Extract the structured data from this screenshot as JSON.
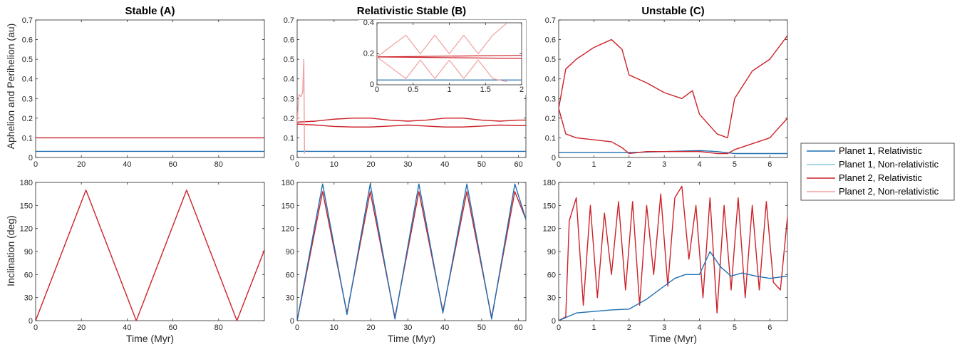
{
  "colors": {
    "planet1_rel": "#1f6fb2",
    "planet1_nonrel": "#8ec8df",
    "planet2_rel": "#cc2229",
    "planet2_nonrel": "#f2a0a0"
  },
  "legend": {
    "entries": [
      {
        "label": "Planet 1, Relativistic",
        "color": "#1f6fb2"
      },
      {
        "label": "Planet 1, Non-relativistic",
        "color": "#8ec8df"
      },
      {
        "label": "Planet 2, Relativistic",
        "color": "#cc2229"
      },
      {
        "label": "Planet 2, Non-relativistic",
        "color": "#f2a0a0"
      }
    ]
  },
  "chart_data": [
    {
      "type": "line",
      "id": "A-top",
      "title": "Stable (A)",
      "xlabel": "",
      "ylabel": "Aphelion and Perihelion (au)",
      "xlim": [
        0,
        100
      ],
      "ylim": [
        0,
        0.7
      ],
      "xticks": [
        "0",
        "20",
        "40",
        "60",
        "80"
      ],
      "yticks": [
        "0",
        "0.1",
        "0.2",
        "0.3",
        "0.4",
        "0.5",
        "0.6",
        "0.7"
      ],
      "series": [
        {
          "name": "Planet 1, Relativistic",
          "x": [
            0,
            100
          ],
          "y": [
            0.031,
            0.031
          ]
        },
        {
          "name": "Planet 2, Relativistic",
          "x": [
            0,
            100
          ],
          "y": [
            0.1,
            0.1
          ]
        }
      ]
    },
    {
      "type": "line",
      "id": "B-top",
      "title": "Relativistic Stable (B)",
      "xlabel": "",
      "ylabel": "",
      "xlim": [
        0,
        62
      ],
      "ylim": [
        0,
        0.7
      ],
      "xticks": [
        "0",
        "10",
        "20",
        "30",
        "40",
        "50",
        "60"
      ],
      "yticks": [
        "0",
        "0.1",
        "0.2",
        "0.3",
        "0.4",
        "0.5",
        "0.6",
        "0.7"
      ],
      "series": [
        {
          "name": "Planet 1, Relativistic",
          "x": [
            0,
            62
          ],
          "y": [
            0.031,
            0.031
          ]
        },
        {
          "name": "Planet 2, Relativistic (aphelion)",
          "x": [
            0,
            5,
            10,
            15,
            20,
            25,
            30,
            35,
            40,
            45,
            50,
            55,
            60,
            62
          ],
          "y": [
            0.18,
            0.185,
            0.195,
            0.2,
            0.2,
            0.19,
            0.185,
            0.19,
            0.2,
            0.2,
            0.19,
            0.185,
            0.19,
            0.19
          ]
        },
        {
          "name": "Planet 2, Relativistic (perihelion)",
          "x": [
            0,
            5,
            10,
            15,
            20,
            25,
            30,
            35,
            40,
            45,
            50,
            55,
            60,
            62
          ],
          "y": [
            0.17,
            0.165,
            0.158,
            0.155,
            0.155,
            0.16,
            0.165,
            0.16,
            0.155,
            0.155,
            0.16,
            0.165,
            0.162,
            0.162
          ]
        },
        {
          "name": "Planet 2, Non-relativistic",
          "x": [
            0,
            0.5,
            1.0,
            1.5,
            1.8,
            2.0
          ],
          "y": [
            0.18,
            0.32,
            0.31,
            0.33,
            0.5,
            0.02
          ]
        }
      ],
      "inset": {
        "xlim": [
          0,
          2
        ],
        "ylim": [
          0,
          0.4
        ],
        "xticks": [
          "0",
          "0.5",
          "1",
          "1.5",
          "2"
        ],
        "yticks": [
          "0",
          "0.2",
          "0.4"
        ],
        "series": [
          {
            "name": "Planet 1, Relativistic",
            "x": [
              0,
              2
            ],
            "y": [
              0.031,
              0.031
            ]
          },
          {
            "name": "Planet 2, Relativistic (aphelion)",
            "x": [
              0,
              2
            ],
            "y": [
              0.18,
              0.19
            ]
          },
          {
            "name": "Planet 2, Relativistic (perihelion)",
            "x": [
              0,
              2
            ],
            "y": [
              0.18,
              0.17
            ]
          },
          {
            "name": "Planet 2, Non-relativistic (aphelion)",
            "x": [
              0,
              0.4,
              0.6,
              0.8,
              1.0,
              1.2,
              1.4,
              1.6,
              1.8
            ],
            "y": [
              0.18,
              0.32,
              0.2,
              0.32,
              0.2,
              0.32,
              0.2,
              0.32,
              0.4
            ]
          },
          {
            "name": "Planet 2, Non-relativistic (perihelion)",
            "x": [
              0,
              0.4,
              0.6,
              0.8,
              1.0,
              1.2,
              1.4,
              1.6,
              1.8
            ],
            "y": [
              0.18,
              0.04,
              0.16,
              0.04,
              0.16,
              0.04,
              0.16,
              0.04,
              0.02
            ]
          }
        ]
      }
    },
    {
      "type": "line",
      "id": "C-top",
      "title": "Unstable (C)",
      "xlabel": "",
      "ylabel": "",
      "xlim": [
        0,
        6.5
      ],
      "ylim": [
        0,
        0.7
      ],
      "xticks": [
        "0",
        "1",
        "2",
        "3",
        "4",
        "5",
        "6"
      ],
      "yticks": [
        "0",
        "0.1",
        "0.2",
        "0.3",
        "0.4",
        "0.5",
        "0.6",
        "0.7"
      ],
      "series": [
        {
          "name": "Planet 1, Relativistic",
          "x": [
            0,
            2,
            3,
            4,
            4.5,
            5,
            6.5
          ],
          "y": [
            0.025,
            0.025,
            0.03,
            0.035,
            0.03,
            0.02,
            0.02
          ]
        },
        {
          "name": "Planet 2, Relativistic (aphelion)",
          "x": [
            0,
            0.2,
            0.5,
            1.0,
            1.5,
            1.8,
            2.0,
            2.5,
            3.0,
            3.5,
            3.8,
            4.0,
            4.5,
            4.8,
            5.0,
            5.5,
            6.0,
            6.5
          ],
          "y": [
            0.25,
            0.45,
            0.5,
            0.56,
            0.6,
            0.55,
            0.42,
            0.38,
            0.33,
            0.3,
            0.34,
            0.22,
            0.12,
            0.1,
            0.3,
            0.44,
            0.5,
            0.62
          ]
        },
        {
          "name": "Planet 2, Relativistic (perihelion)",
          "x": [
            0,
            0.2,
            0.5,
            1.0,
            1.5,
            1.8,
            2.0,
            2.5,
            3.0,
            3.5,
            4.0,
            4.5,
            4.8,
            5.0,
            5.5,
            6.0,
            6.5
          ],
          "y": [
            0.25,
            0.12,
            0.1,
            0.09,
            0.08,
            0.05,
            0.02,
            0.03,
            0.03,
            0.03,
            0.03,
            0.02,
            0.02,
            0.04,
            0.07,
            0.1,
            0.2
          ]
        }
      ]
    },
    {
      "type": "line",
      "id": "A-bottom",
      "title": "",
      "xlabel": "Time (Myr)",
      "ylabel": "Inclination (deg)",
      "xlim": [
        0,
        100
      ],
      "ylim": [
        0,
        180
      ],
      "xticks": [
        "0",
        "20",
        "40",
        "60",
        "80"
      ],
      "yticks": [
        "0",
        "30",
        "60",
        "90",
        "120",
        "150",
        "180"
      ],
      "series": [
        {
          "name": "Planet 2, Relativistic",
          "x": [
            0,
            22,
            44,
            66,
            88,
            100
          ],
          "y": [
            0,
            170,
            0,
            170,
            0,
            92
          ]
        }
      ]
    },
    {
      "type": "line",
      "id": "B-bottom",
      "title": "",
      "xlabel": "Time (Myr)",
      "ylabel": "",
      "xlim": [
        0,
        62
      ],
      "ylim": [
        0,
        180
      ],
      "xticks": [
        "0",
        "10",
        "20",
        "30",
        "40",
        "50",
        "60"
      ],
      "yticks": [
        "0",
        "30",
        "60",
        "90",
        "120",
        "150",
        "180"
      ],
      "series": [
        {
          "name": "Planet 2, Relativistic",
          "x": [
            0,
            6.9,
            13.5,
            19.8,
            26.5,
            33.0,
            39.5,
            46.0,
            52.7,
            59.0,
            62
          ],
          "y": [
            0,
            168,
            10,
            168,
            4,
            168,
            12,
            168,
            4,
            168,
            132
          ]
        },
        {
          "name": "Planet 1, Relativistic",
          "x": [
            0,
            6.9,
            13.5,
            19.8,
            26.5,
            33.0,
            39.5,
            46.0,
            52.7,
            59.0,
            62
          ],
          "y": [
            0,
            178,
            8,
            178,
            2,
            178,
            10,
            178,
            2,
            178,
            132
          ]
        }
      ]
    },
    {
      "type": "line",
      "id": "C-bottom",
      "title": "",
      "xlabel": "Time (Myr)",
      "ylabel": "",
      "xlim": [
        0,
        6.5
      ],
      "ylim": [
        0,
        180
      ],
      "xticks": [
        "0",
        "1",
        "2",
        "3",
        "4",
        "5",
        "6"
      ],
      "yticks": [
        "0",
        "30",
        "60",
        "90",
        "120",
        "150",
        "180"
      ],
      "series": [
        {
          "name": "Planet 2, Relativistic",
          "x": [
            0,
            0.2,
            0.3,
            0.5,
            0.7,
            0.9,
            1.1,
            1.3,
            1.5,
            1.7,
            1.9,
            2.1,
            2.3,
            2.5,
            2.7,
            2.9,
            3.1,
            3.3,
            3.5,
            3.7,
            3.9,
            4.1,
            4.3,
            4.5,
            4.7,
            4.9,
            5.1,
            5.3,
            5.5,
            5.7,
            5.9,
            6.1,
            6.3,
            6.5
          ],
          "y": [
            0,
            5,
            130,
            160,
            20,
            150,
            30,
            140,
            60,
            155,
            40,
            155,
            20,
            150,
            60,
            165,
            45,
            160,
            175,
            80,
            150,
            30,
            160,
            10,
            150,
            40,
            160,
            30,
            150,
            40,
            155,
            50,
            40,
            135
          ]
        },
        {
          "name": "Planet 1, Relativistic",
          "x": [
            0,
            0.5,
            1.0,
            1.5,
            2.0,
            2.5,
            3.0,
            3.3,
            3.6,
            4.0,
            4.3,
            4.6,
            4.9,
            5.2,
            5.6,
            6.0,
            6.5
          ],
          "y": [
            0,
            10,
            12,
            14,
            15,
            28,
            45,
            55,
            60,
            60,
            90,
            70,
            58,
            62,
            58,
            55,
            58
          ]
        }
      ]
    }
  ]
}
